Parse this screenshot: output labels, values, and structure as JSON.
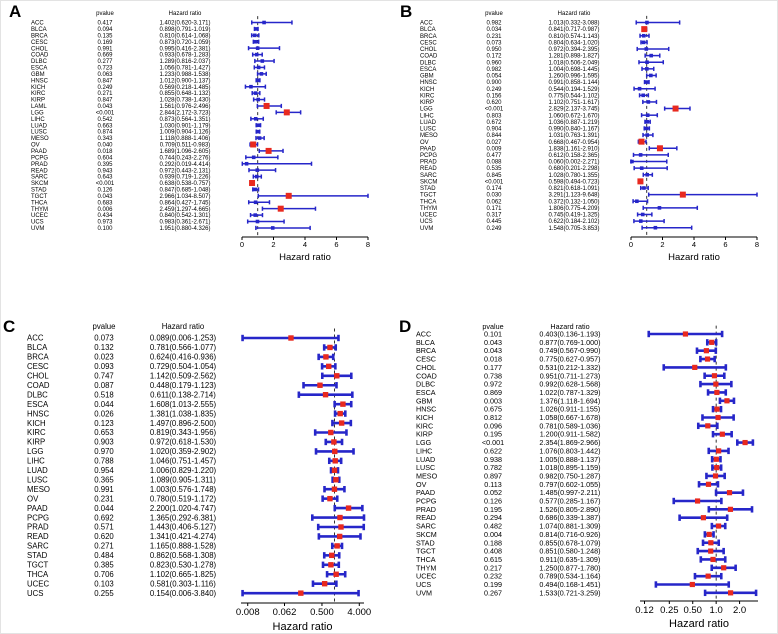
{
  "colors": {
    "background": "#ffffff",
    "ci_bar": "#2626c9",
    "marker_significant": "#e8291f",
    "marker_nonsignificant": "#2626c9",
    "text": "#000000",
    "reference_line": "#000000"
  },
  "chart_data": {
    "type": "forest",
    "description": "Pan-cancer Cox regression forest plots of hazard ratios across TCGA cancer types, four endpoints (panels A-D)",
    "panels": [
      {
        "label": "A",
        "pvalue_header": "pvalue",
        "hr_header": "Hazard ratio",
        "xlabel": "Hazard ratio",
        "marker_mode": "by_significance",
        "axis": {
          "scale": "linear",
          "min": 0,
          "max": 8,
          "ticks": [
            0,
            2,
            4,
            6,
            8
          ],
          "tick_labels": [
            "0",
            "2",
            "4",
            "6",
            "8"
          ],
          "ref_line": 1
        },
        "rows": [
          {
            "cancer": "ACC",
            "pvalue": "0.417",
            "hr": "1.402(0.620-3.171)"
          },
          {
            "cancer": "BLCA",
            "pvalue": "0.094",
            "hr": "0.898(0.791-1.019)"
          },
          {
            "cancer": "BRCA",
            "pvalue": "0.135",
            "hr": "0.810(0.614-1.068)"
          },
          {
            "cancer": "CESC",
            "pvalue": "0.169",
            "hr": "0.873(0.720-1.059)"
          },
          {
            "cancer": "CHOL",
            "pvalue": "0.991",
            "hr": "0.995(0.416-2.381)"
          },
          {
            "cancer": "COAD",
            "pvalue": "0.669",
            "hr": "0.933(0.678-1.283)"
          },
          {
            "cancer": "DLBC",
            "pvalue": "0.277",
            "hr": "1.289(0.816-2.037)"
          },
          {
            "cancer": "ESCA",
            "pvalue": "0.723",
            "hr": "1.056(0.781-1.427)"
          },
          {
            "cancer": "GBM",
            "pvalue": "0.063",
            "hr": "1.233(0.988-1.538)"
          },
          {
            "cancer": "HNSC",
            "pvalue": "0.847",
            "hr": "1.012(0.900-1.137)"
          },
          {
            "cancer": "KICH",
            "pvalue": "0.249",
            "hr": "0.569(0.218-1.485)"
          },
          {
            "cancer": "KIRC",
            "pvalue": "0.271",
            "hr": "0.855(0.648-1.132)"
          },
          {
            "cancer": "KIRP",
            "pvalue": "0.847",
            "hr": "1.028(0.738-1.430)"
          },
          {
            "cancer": "LAML",
            "pvalue": "0.043",
            "hr": "1.561(0.976-2.496)"
          },
          {
            "cancer": "LGG",
            "pvalue": "<0.001",
            "hr": "2.844(2.172-3.723)"
          },
          {
            "cancer": "LIHC",
            "pvalue": "0.542",
            "hr": "0.873(0.564-1.351)"
          },
          {
            "cancer": "LUAD",
            "pvalue": "0.663",
            "hr": "1.030(0.901-1.179)"
          },
          {
            "cancer": "LUSC",
            "pvalue": "0.874",
            "hr": "1.009(0.904-1.126)"
          },
          {
            "cancer": "MESO",
            "pvalue": "0.343",
            "hr": "1.118(0.888-1.406)"
          },
          {
            "cancer": "OV",
            "pvalue": "0.040",
            "hr": "0.709(0.511-0.983)"
          },
          {
            "cancer": "PAAD",
            "pvalue": "0.018",
            "hr": "1.689(1.096-2.605)"
          },
          {
            "cancer": "PCPG",
            "pvalue": "0.604",
            "hr": "0.744(0.243-2.276)"
          },
          {
            "cancer": "PRAD",
            "pvalue": "0.395",
            "hr": "0.292(0.019-4.414)"
          },
          {
            "cancer": "READ",
            "pvalue": "0.943",
            "hr": "0.972(0.443-2.131)"
          },
          {
            "cancer": "SARC",
            "pvalue": "0.643",
            "hr": "0.939(0.719-1.226)"
          },
          {
            "cancer": "SKCM",
            "pvalue": "<0.001",
            "hr": "0.638(0.538-0.757)"
          },
          {
            "cancer": "STAD",
            "pvalue": "0.126",
            "hr": "0.847(0.685-1.048)"
          },
          {
            "cancer": "TGCT",
            "pvalue": "0.043",
            "hr": "2.966(1.034-8.507)"
          },
          {
            "cancer": "THCA",
            "pvalue": "0.683",
            "hr": "0.864(0.427-1.745)"
          },
          {
            "cancer": "THYM",
            "pvalue": "0.006",
            "hr": "2.459(1.297-4.665)"
          },
          {
            "cancer": "UCEC",
            "pvalue": "0.434",
            "hr": "0.840(0.542-1.301)"
          },
          {
            "cancer": "UCS",
            "pvalue": "0.973",
            "hr": "0.983(0.361-2.671)"
          },
          {
            "cancer": "UVM",
            "pvalue": "0.100",
            "hr": "1.951(0.880-4.326)"
          }
        ]
      },
      {
        "label": "B",
        "pvalue_header": "pvalue",
        "hr_header": "Hazard ratio",
        "xlabel": "Hazard ratio",
        "marker_mode": "by_significance",
        "axis": {
          "scale": "linear",
          "min": 0,
          "max": 8,
          "ticks": [
            0,
            2,
            4,
            6,
            8
          ],
          "tick_labels": [
            "0",
            "2",
            "4",
            "6",
            "8"
          ],
          "ref_line": 1
        },
        "rows": [
          {
            "cancer": "ACC",
            "pvalue": "0.982",
            "hr": "1.013(0.332-3.088)"
          },
          {
            "cancer": "BLCA",
            "pvalue": "0.034",
            "hr": "0.841(0.717-0.987)"
          },
          {
            "cancer": "BRCA",
            "pvalue": "0.231",
            "hr": "0.810(0.574-1.143)"
          },
          {
            "cancer": "CESC",
            "pvalue": "0.073",
            "hr": "0.804(0.634-1.020)"
          },
          {
            "cancer": "CHOL",
            "pvalue": "0.950",
            "hr": "0.972(0.394-2.395)"
          },
          {
            "cancer": "COAD",
            "pvalue": "0.172",
            "hr": "1.281(0.898-1.827)"
          },
          {
            "cancer": "DLBC",
            "pvalue": "0.960",
            "hr": "1.018(0.506-2.049)"
          },
          {
            "cancer": "ESCA",
            "pvalue": "0.982",
            "hr": "1.004(0.698-1.445)"
          },
          {
            "cancer": "GBM",
            "pvalue": "0.054",
            "hr": "1.260(0.996-1.595)"
          },
          {
            "cancer": "HNSC",
            "pvalue": "0.900",
            "hr": "0.991(0.858-1.144)"
          },
          {
            "cancer": "KICH",
            "pvalue": "0.249",
            "hr": "0.544(0.194-1.529)"
          },
          {
            "cancer": "KIRC",
            "pvalue": "0.156",
            "hr": "0.775(0.544-1.102)"
          },
          {
            "cancer": "KIRP",
            "pvalue": "0.620",
            "hr": "1.102(0.751-1.617)"
          },
          {
            "cancer": "LGG",
            "pvalue": "<0.001",
            "hr": "2.829(2.137-3.745)"
          },
          {
            "cancer": "LIHC",
            "pvalue": "0.803",
            "hr": "1.060(0.672-1.670)"
          },
          {
            "cancer": "LUAD",
            "pvalue": "0.672",
            "hr": "1.036(0.887-1.219)"
          },
          {
            "cancer": "LUSC",
            "pvalue": "0.904",
            "hr": "0.990(0.840-1.167)"
          },
          {
            "cancer": "MESO",
            "pvalue": "0.844",
            "hr": "1.031(0.763-1.391)"
          },
          {
            "cancer": "OV",
            "pvalue": "0.027",
            "hr": "0.668(0.467-0.954)"
          },
          {
            "cancer": "PAAD",
            "pvalue": "0.009",
            "hr": "1.838(1.161-2.910)"
          },
          {
            "cancer": "PCPG",
            "pvalue": "0.477",
            "hr": "0.612(0.158-2.365)"
          },
          {
            "cancer": "PRAD",
            "pvalue": "0.088",
            "hr": "0.060(0.002-2.271)"
          },
          {
            "cancer": "READ",
            "pvalue": "0.535",
            "hr": "0.680(0.201-2.298)"
          },
          {
            "cancer": "SARC",
            "pvalue": "0.845",
            "hr": "1.028(0.780-1.355)"
          },
          {
            "cancer": "SKCM",
            "pvalue": "<0.001",
            "hr": "0.598(0.494-0.723)"
          },
          {
            "cancer": "STAD",
            "pvalue": "0.174",
            "hr": "0.821(0.618-1.091)"
          },
          {
            "cancer": "TGCT",
            "pvalue": "0.030",
            "hr": "3.291(1.123-9.648)"
          },
          {
            "cancer": "THCA",
            "pvalue": "0.062",
            "hr": "0.372(0.132-1.050)"
          },
          {
            "cancer": "THYM",
            "pvalue": "0.171",
            "hr": "1.806(0.775-4.209)"
          },
          {
            "cancer": "UCEC",
            "pvalue": "0.317",
            "hr": "0.745(0.419-1.325)"
          },
          {
            "cancer": "UCS",
            "pvalue": "0.445",
            "hr": "0.622(0.184-2.102)"
          },
          {
            "cancer": "UVM",
            "pvalue": "0.249",
            "hr": "1.548(0.705-3.853)"
          }
        ]
      },
      {
        "label": "C",
        "pvalue_header": "pvalue",
        "hr_header": "Hazard ratio",
        "xlabel": "Hazard ratio",
        "marker_mode": "all_red",
        "axis": {
          "scale": "log",
          "min": 0.0055,
          "max": 5.2,
          "ticks": [
            0.008,
            0.062,
            0.5,
            4.0
          ],
          "tick_labels": [
            "0.008",
            "0.062",
            "0.500",
            "4.000"
          ],
          "ref_line": 1
        },
        "rows": [
          {
            "cancer": "ACC",
            "pvalue": "0.073",
            "hr": "0.089(0.006-1.253)"
          },
          {
            "cancer": "BLCA",
            "pvalue": "0.132",
            "hr": "0.781(0.566-1.077)"
          },
          {
            "cancer": "BRCA",
            "pvalue": "0.023",
            "hr": "0.624(0.416-0.936)"
          },
          {
            "cancer": "CESC",
            "pvalue": "0.093",
            "hr": "0.729(0.504-1.054)"
          },
          {
            "cancer": "CHOL",
            "pvalue": "0.747",
            "hr": "1.142(0.509-2.562)"
          },
          {
            "cancer": "COAD",
            "pvalue": "0.087",
            "hr": "0.448(0.179-1.123)"
          },
          {
            "cancer": "DLBC",
            "pvalue": "0.518",
            "hr": "0.611(0.138-2.714)"
          },
          {
            "cancer": "ESCA",
            "pvalue": "0.044",
            "hr": "1.608(1.013-2.555)"
          },
          {
            "cancer": "HNSC",
            "pvalue": "0.026",
            "hr": "1.381(1.038-1.835)"
          },
          {
            "cancer": "KICH",
            "pvalue": "0.123",
            "hr": "1.497(0.896-2.500)"
          },
          {
            "cancer": "KIRC",
            "pvalue": "0.653",
            "hr": "0.819(0.343-1.956)"
          },
          {
            "cancer": "KIRP",
            "pvalue": "0.903",
            "hr": "0.972(0.618-1.530)"
          },
          {
            "cancer": "LGG",
            "pvalue": "0.970",
            "hr": "1.020(0.359-2.902)"
          },
          {
            "cancer": "LIHC",
            "pvalue": "0.788",
            "hr": "1.046(0.751-1.457)"
          },
          {
            "cancer": "LUAD",
            "pvalue": "0.954",
            "hr": "1.006(0.829-1.220)"
          },
          {
            "cancer": "LUSC",
            "pvalue": "0.365",
            "hr": "1.089(0.905-1.311)"
          },
          {
            "cancer": "MESO",
            "pvalue": "0.991",
            "hr": "1.003(0.576-1.748)"
          },
          {
            "cancer": "OV",
            "pvalue": "0.231",
            "hr": "0.780(0.519-1.172)"
          },
          {
            "cancer": "PAAD",
            "pvalue": "0.044",
            "hr": "2.200(1.020-4.747)"
          },
          {
            "cancer": "PCPG",
            "pvalue": "0.692",
            "hr": "1.365(0.292-6.381)"
          },
          {
            "cancer": "PRAD",
            "pvalue": "0.571",
            "hr": "1.443(0.406-5.127)"
          },
          {
            "cancer": "READ",
            "pvalue": "0.620",
            "hr": "1.341(0.421-4.274)"
          },
          {
            "cancer": "SARC",
            "pvalue": "0.271",
            "hr": "1.165(0.888-1.528)"
          },
          {
            "cancer": "STAD",
            "pvalue": "0.484",
            "hr": "0.862(0.568-1.308)"
          },
          {
            "cancer": "TGCT",
            "pvalue": "0.385",
            "hr": "0.823(0.530-1.278)"
          },
          {
            "cancer": "THCA",
            "pvalue": "0.706",
            "hr": "1.102(0.665-1.825)"
          },
          {
            "cancer": "UCEC",
            "pvalue": "0.103",
            "hr": "0.581(0.303-1.116)"
          },
          {
            "cancer": "UCS",
            "pvalue": "0.255",
            "hr": "0.154(0.006-3.840)"
          }
        ]
      },
      {
        "label": "D",
        "pvalue_header": "pvalue",
        "hr_header": "Hazard ratio",
        "xlabel": "Hazard ratio",
        "marker_mode": "all_red",
        "axis": {
          "scale": "log",
          "min": 0.105,
          "max": 3.45,
          "ticks": [
            0.12,
            0.25,
            0.5,
            1.0,
            2.0
          ],
          "tick_labels": [
            "0.12",
            "0.25",
            "0.50",
            "1.0",
            "2.0"
          ],
          "ref_line": 1
        },
        "rows": [
          {
            "cancer": "ACC",
            "pvalue": "0.101",
            "hr": "0.403(0.136-1.193)"
          },
          {
            "cancer": "BLCA",
            "pvalue": "0.043",
            "hr": "0.877(0.769-1.000)"
          },
          {
            "cancer": "BRCA",
            "pvalue": "0.043",
            "hr": "0.749(0.567-0.990)"
          },
          {
            "cancer": "CESC",
            "pvalue": "0.018",
            "hr": "0.775(0.627-0.957)"
          },
          {
            "cancer": "CHOL",
            "pvalue": "0.177",
            "hr": "0.531(0.212-1.332)"
          },
          {
            "cancer": "COAD",
            "pvalue": "0.738",
            "hr": "0.951(0.711-1.273)"
          },
          {
            "cancer": "DLBC",
            "pvalue": "0.972",
            "hr": "0.992(0.628-1.568)"
          },
          {
            "cancer": "ESCA",
            "pvalue": "0.869",
            "hr": "1.022(0.787-1.329)"
          },
          {
            "cancer": "GBM",
            "pvalue": "0.003",
            "hr": "1.376(1.118-1.694)"
          },
          {
            "cancer": "HNSC",
            "pvalue": "0.675",
            "hr": "1.026(0.911-1.155)"
          },
          {
            "cancer": "KICH",
            "pvalue": "0.812",
            "hr": "1.058(0.667-1.678)"
          },
          {
            "cancer": "KIRC",
            "pvalue": "0.096",
            "hr": "0.781(0.589-1.036)"
          },
          {
            "cancer": "KIRP",
            "pvalue": "0.195",
            "hr": "1.200(0.911-1.582)"
          },
          {
            "cancer": "LGG",
            "pvalue": "<0.001",
            "hr": "2.354(1.869-2.966)"
          },
          {
            "cancer": "LIHC",
            "pvalue": "0.622",
            "hr": "1.076(0.803-1.442)"
          },
          {
            "cancer": "LUAD",
            "pvalue": "0.938",
            "hr": "1.005(0.888-1.137)"
          },
          {
            "cancer": "LUSC",
            "pvalue": "0.782",
            "hr": "1.018(0.895-1.159)"
          },
          {
            "cancer": "MESO",
            "pvalue": "0.897",
            "hr": "0.982(0.750-1.287)"
          },
          {
            "cancer": "OV",
            "pvalue": "0.113",
            "hr": "0.797(0.602-1.055)"
          },
          {
            "cancer": "PAAD",
            "pvalue": "0.052",
            "hr": "1.485(0.997-2.211)"
          },
          {
            "cancer": "PCPG",
            "pvalue": "0.126",
            "hr": "0.577(0.285-1.167)"
          },
          {
            "cancer": "PRAD",
            "pvalue": "0.195",
            "hr": "1.526(0.805-2.890)"
          },
          {
            "cancer": "READ",
            "pvalue": "0.294",
            "hr": "0.686(0.339-1.387)"
          },
          {
            "cancer": "SARC",
            "pvalue": "0.482",
            "hr": "1.074(0.881-1.309)"
          },
          {
            "cancer": "SKCM",
            "pvalue": "0.004",
            "hr": "0.814(0.716-0.926)"
          },
          {
            "cancer": "STAD",
            "pvalue": "0.188",
            "hr": "0.855(0.678-1.079)"
          },
          {
            "cancer": "TGCT",
            "pvalue": "0.408",
            "hr": "0.851(0.580-1.248)"
          },
          {
            "cancer": "THCA",
            "pvalue": "0.615",
            "hr": "0.911(0.635-1.309)"
          },
          {
            "cancer": "THYM",
            "pvalue": "0.217",
            "hr": "1.250(0.877-1.780)"
          },
          {
            "cancer": "UCEC",
            "pvalue": "0.232",
            "hr": "0.789(0.534-1.164)"
          },
          {
            "cancer": "UCS",
            "pvalue": "0.199",
            "hr": "0.494(0.168-1.451)"
          },
          {
            "cancer": "UVM",
            "pvalue": "0.267",
            "hr": "1.533(0.721-3.259)"
          }
        ]
      }
    ]
  }
}
